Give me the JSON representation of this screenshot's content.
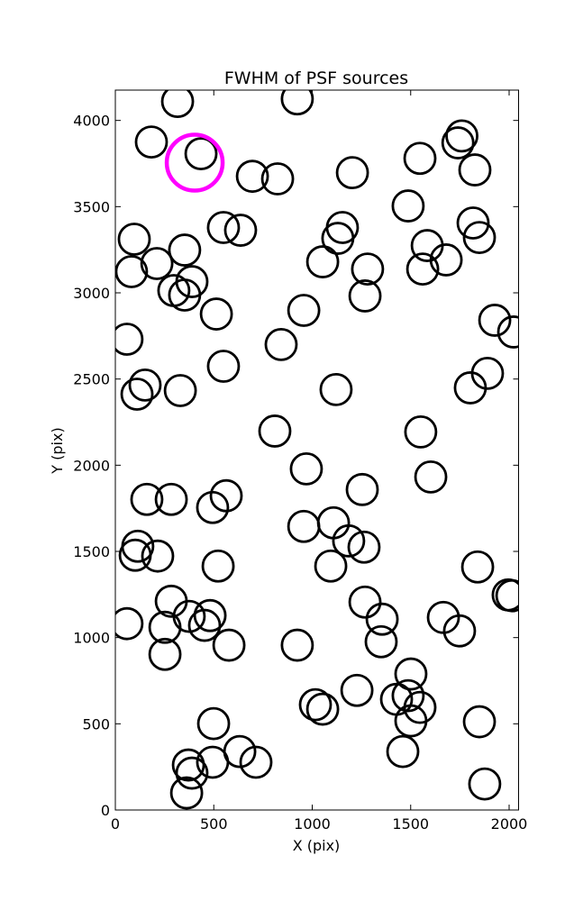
{
  "chart_data": {
    "type": "scatter",
    "title": "FWHM of PSF sources",
    "xlabel": "X (pix)",
    "ylabel": "Y (pix)",
    "xlim": [
      0,
      2048
    ],
    "ylim": [
      0,
      4176
    ],
    "xticks": [
      0,
      500,
      1000,
      1500,
      2000
    ],
    "yticks": [
      0,
      500,
      1000,
      1500,
      2000,
      2500,
      3000,
      3500,
      4000
    ],
    "series": [
      {
        "color": "#000000",
        "x": [
          316,
          924,
          183,
          435,
          1760,
          1740,
          1547,
          1826,
          696,
          824,
          1204,
          1487,
          96,
          549,
          636,
          1153,
          1130,
          1817,
          1849,
          352,
          211,
          82,
          297,
          352,
          389,
          1053,
          1584,
          1680,
          1561,
          1281,
          1268,
          513,
          957,
          1927,
          2023,
          59,
          842,
          151,
          110,
          330,
          549,
          1121,
          1890,
          1803,
          810,
          1551,
          970,
          1602,
          160,
          284,
          563,
          494,
          1254,
          957,
          1108,
          1185,
          1263,
          114,
          101,
          215,
          1094,
          522,
          1840,
          284,
          1268,
          1995,
          2014,
          59,
          252,
          375,
          481,
          453,
          1355,
          1666,
          1748,
          252,
          577,
          924,
          1350,
          1501,
          1227,
          1016,
          1053,
          1428,
          1487,
          1547,
          1501,
          1849,
          499,
          1460,
          632,
          371,
          389,
          494,
          714,
          362,
          1876
        ],
        "y": [
          4110,
          4125,
          3875,
          3807,
          3910,
          3870,
          3780,
          3713,
          3676,
          3661,
          3697,
          3504,
          3311,
          3379,
          3363,
          3379,
          3316,
          3405,
          3321,
          3248,
          3170,
          3123,
          3013,
          2987,
          3065,
          3180,
          3274,
          3191,
          3138,
          3138,
          2982,
          2877,
          2898,
          2841,
          2773,
          2731,
          2700,
          2465,
          2412,
          2433,
          2574,
          2439,
          2533,
          2449,
          2198,
          2193,
          1979,
          1932,
          1802,
          1802,
          1823,
          1755,
          1859,
          1645,
          1666,
          1561,
          1525,
          1530,
          1478,
          1473,
          1415,
          1415,
          1410,
          1211,
          1206,
          1248,
          1243,
          1081,
          1060,
          1123,
          1128,
          1071,
          1107,
          1117,
          1039,
          903,
          956,
          956,
          976,
          789,
          694,
          611,
          585,
          642,
          663,
          595,
          517,
          512,
          501,
          339,
          339,
          261,
          214,
          277,
          277,
          99,
          151
        ]
      },
      {
        "color": "#ff00ff",
        "x": [
          403
        ],
        "y": [
          3755
        ]
      }
    ]
  }
}
